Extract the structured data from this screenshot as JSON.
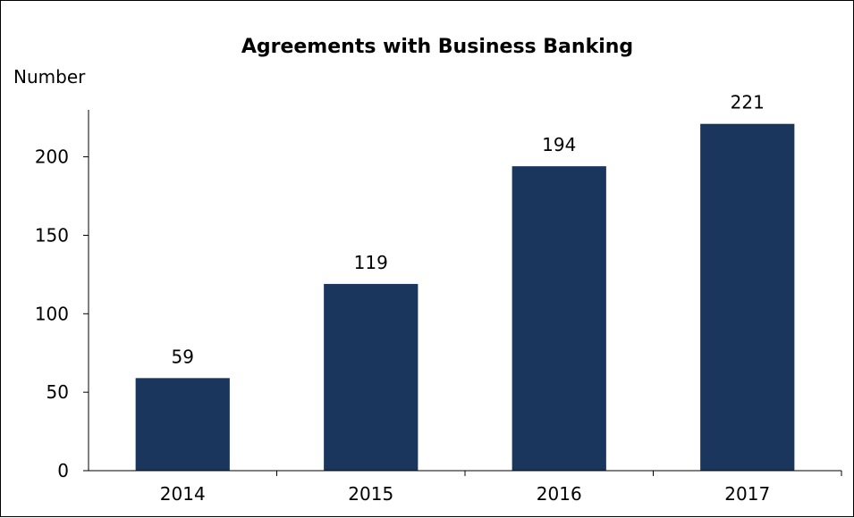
{
  "chart_data": {
    "type": "bar",
    "title": "Agreements with Business Banking",
    "ylabel": "Number",
    "xlabel": "",
    "categories": [
      "2014",
      "2015",
      "2016",
      "2017"
    ],
    "values": [
      59,
      119,
      194,
      221
    ],
    "data_labels": [
      "59",
      "119",
      "194",
      "221"
    ],
    "ylim": [
      0,
      230
    ],
    "yticks": [
      0,
      50,
      100,
      150,
      200
    ],
    "ytick_labels": [
      "0",
      "50",
      "100",
      "150",
      "200"
    ],
    "bar_color": "#1b365d",
    "grid": false,
    "legend": "none"
  }
}
